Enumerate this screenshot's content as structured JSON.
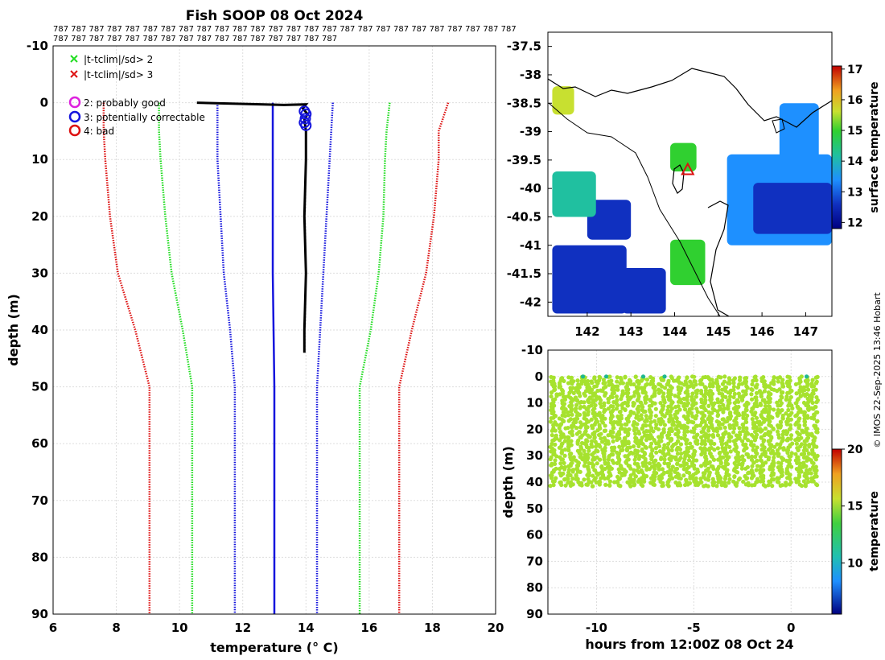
{
  "figure": {
    "title": "Fish SOOP 08 Oct 2024",
    "credit": "© IMOS 22-Sep-2025 13:46 Hobart",
    "id_strip_line1": "787 787 787 787 787 787 787 787 787 787 787 787 787 787 787 787 787 787 787 787 787 787 787 787 787 787",
    "id_strip_line2": "787 787 787 787 787 787 787 787 787 787 787 787 787 787 787 787"
  },
  "colors": {
    "black": "#000000",
    "green": "#22dd22",
    "red": "#dd1111",
    "blue": "#1515dd",
    "magenta": "#dd22dd",
    "grid": "#dddddd",
    "land": "#ffffff",
    "mask": "#ffffff"
  },
  "chart_data": [
    {
      "type": "line",
      "name": "profile",
      "xlabel": "temperature (° C)",
      "ylabel": "depth (m)",
      "xlim": [
        6,
        20
      ],
      "ylim": [
        90,
        -10
      ],
      "xticks": [
        6,
        8,
        10,
        12,
        14,
        16,
        18,
        20
      ],
      "yticks": [
        -10,
        0,
        10,
        20,
        30,
        40,
        50,
        60,
        70,
        80,
        90
      ],
      "grid": true,
      "legend": {
        "items": [
          {
            "marker": "x",
            "color": "green",
            "label": "|t-tclim|/sd> 2"
          },
          {
            "marker": "x",
            "color": "red",
            "label": "|t-tclim|/sd> 3"
          },
          {
            "marker": "o",
            "color": "magenta",
            "label": "2: probably good"
          },
          {
            "marker": "o",
            "color": "blue",
            "label": "3: potentially correctable"
          },
          {
            "marker": "o",
            "color": "red",
            "label": "4: bad"
          }
        ]
      },
      "series": [
        {
          "name": "climatology -3sd",
          "color": "red",
          "style": "dotted",
          "depth": [
            0,
            5,
            10,
            20,
            30,
            40,
            50,
            60,
            90
          ],
          "temp": [
            7.6,
            7.6,
            7.65,
            7.8,
            8.05,
            8.6,
            9.05,
            9.05,
            9.05
          ]
        },
        {
          "name": "climatology -2sd",
          "color": "green",
          "style": "dotted",
          "depth": [
            0,
            5,
            10,
            20,
            30,
            40,
            50,
            60,
            90
          ],
          "temp": [
            9.35,
            9.35,
            9.4,
            9.55,
            9.75,
            10.1,
            10.4,
            10.4,
            10.4
          ]
        },
        {
          "name": "climatology -1sd",
          "color": "blue",
          "style": "dotted",
          "depth": [
            0,
            5,
            10,
            20,
            30,
            40,
            50,
            60,
            90
          ],
          "temp": [
            11.2,
            11.2,
            11.2,
            11.3,
            11.4,
            11.6,
            11.75,
            11.75,
            11.75
          ]
        },
        {
          "name": "climatology mean",
          "color": "blue",
          "style": "solid",
          "depth": [
            0,
            10,
            30,
            50,
            90
          ],
          "temp": [
            12.95,
            12.95,
            12.95,
            13.0,
            13.0
          ]
        },
        {
          "name": "climatology +1sd",
          "color": "blue",
          "style": "dotted",
          "depth": [
            0,
            5,
            10,
            20,
            30,
            40,
            50,
            60,
            90
          ],
          "temp": [
            14.85,
            14.8,
            14.75,
            14.65,
            14.55,
            14.45,
            14.35,
            14.35,
            14.35
          ]
        },
        {
          "name": "climatology +2sd",
          "color": "green",
          "style": "dotted",
          "depth": [
            0,
            5,
            10,
            20,
            30,
            40,
            50,
            60,
            90
          ],
          "temp": [
            16.65,
            16.55,
            16.5,
            16.45,
            16.3,
            16.05,
            15.7,
            15.7,
            15.7
          ]
        },
        {
          "name": "climatology +3sd",
          "color": "red",
          "style": "dotted",
          "depth": [
            0,
            5,
            10,
            20,
            30,
            40,
            50,
            60,
            90
          ],
          "temp": [
            18.5,
            18.2,
            18.2,
            18.05,
            17.8,
            17.35,
            16.95,
            16.95,
            16.95
          ]
        },
        {
          "name": "observed profile",
          "color": "black",
          "style": "solid",
          "depth": [
            0,
            0.4,
            0.3,
            1,
            2,
            3,
            5,
            10,
            20,
            30,
            40,
            44
          ],
          "temp": [
            10.55,
            13.3,
            14.0,
            13.9,
            14.05,
            13.95,
            14.0,
            14.0,
            13.95,
            14.0,
            13.95,
            13.95
          ]
        }
      ],
      "flagged_points": {
        "flag": "3: potentially correctable",
        "depth": [
          1.5,
          2.0,
          2.8,
          3.5,
          4.0
        ],
        "temp": [
          13.95,
          14.0,
          13.98,
          13.95,
          14.0
        ]
      }
    },
    {
      "type": "heatmap",
      "name": "sst-map",
      "xlim": [
        141.1,
        147.6
      ],
      "ylim": [
        -42.25,
        -37.25
      ],
      "xticks": [
        142,
        143,
        144,
        145,
        146,
        147
      ],
      "yticks": [
        -37.5,
        -38,
        -38.5,
        -39,
        -39.5,
        -40,
        -40.5,
        -41,
        -41.5,
        -42
      ],
      "colorbar": {
        "label": "surface temperature",
        "min": 11.8,
        "max": 17.1,
        "ticks": [
          12,
          13,
          14,
          15,
          16,
          17
        ]
      },
      "marker": {
        "lon": 144.3,
        "lat": -39.68,
        "symbol": "triangle",
        "color": "red"
      },
      "regions": [
        {
          "lon": [
            141.2,
            142.9
          ],
          "lat": [
            -41.0,
            -42.2
          ],
          "temp": 12.1
        },
        {
          "lon": [
            142.8,
            143.8
          ],
          "lat": [
            -41.4,
            -42.2
          ],
          "temp": 12.1
        },
        {
          "lon": [
            142.0,
            143.0
          ],
          "lat": [
            -40.2,
            -40.9
          ],
          "temp": 12.3
        },
        {
          "lon": [
            141.2,
            142.2
          ],
          "lat": [
            -39.7,
            -40.5
          ],
          "temp": 13.4
        },
        {
          "lon": [
            145.2,
            147.6
          ],
          "lat": [
            -39.4,
            -41.0
          ],
          "temp": 13.0
        },
        {
          "lon": [
            145.8,
            147.6
          ],
          "lat": [
            -39.9,
            -40.8
          ],
          "temp": 12.5
        },
        {
          "lon": [
            146.4,
            147.3
          ],
          "lat": [
            -38.5,
            -39.6
          ],
          "temp": 13.3
        },
        {
          "lon": [
            143.9,
            144.7
          ],
          "lat": [
            -40.9,
            -41.7
          ],
          "temp": 14.3
        },
        {
          "lon": [
            143.9,
            144.5
          ],
          "lat": [
            -39.2,
            -39.7
          ],
          "temp": 14.8
        },
        {
          "lon": [
            141.2,
            141.7
          ],
          "lat": [
            -38.2,
            -38.7
          ],
          "temp": 15.3
        }
      ]
    },
    {
      "type": "scatter",
      "name": "depth-time",
      "xlabel": "hours from 12:00Z 08 Oct 24",
      "ylabel": "depth (m)",
      "xlim": [
        -12.5,
        2.1
      ],
      "ylim": [
        90,
        -10
      ],
      "xticks": [
        -10,
        -5,
        0
      ],
      "yticks": [
        -10,
        0,
        10,
        20,
        30,
        40,
        50,
        60,
        70,
        80,
        90
      ],
      "colorbar": {
        "label": "temperature",
        "min": 5.5,
        "max": 20,
        "ticks": [
          10,
          15,
          20
        ]
      },
      "profile_hours": [
        -12.2,
        -11.75,
        -11.3,
        -10.9,
        -10.5,
        -10.1,
        -9.7,
        -9.25,
        -8.8,
        -8.4,
        -7.95,
        -7.55,
        -7.1,
        -6.65,
        -6.2,
        -5.8,
        -5.35,
        -4.95,
        -4.5,
        -4.1,
        -3.65,
        -3.25,
        -2.8,
        -2.35,
        -1.9,
        -1.45,
        -1.0,
        -0.55,
        -0.1,
        0.4,
        0.8,
        1.2
      ],
      "depth_range": [
        0,
        42
      ],
      "temperature": 14.0,
      "surface_outliers": {
        "hours": [
          -10.7,
          -9.5,
          -7.6,
          -6.5,
          0.8
        ],
        "temperature": 12.5
      }
    }
  ]
}
